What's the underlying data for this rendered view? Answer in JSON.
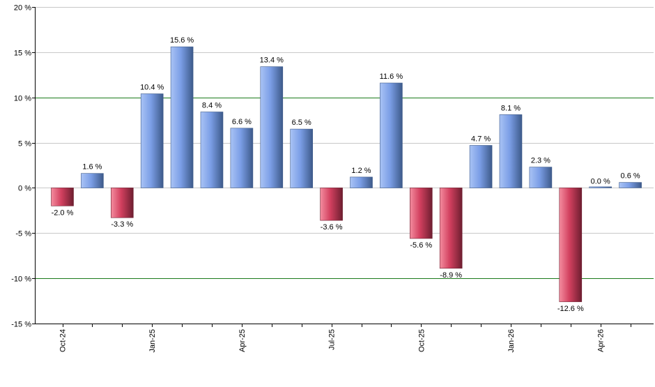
{
  "chart_data": {
    "type": "bar",
    "title": "",
    "xlabel": "",
    "ylabel": "",
    "ylim": [
      -15,
      20
    ],
    "y_ticks": [
      20,
      15,
      10,
      5,
      0,
      -5,
      -10,
      -15
    ],
    "y_tick_labels": [
      "20 %",
      "15 %",
      "10 %",
      "5 %",
      "0 %",
      "-5 %",
      "-10 %",
      "-15 %"
    ],
    "highlight_lines": [
      10,
      -10
    ],
    "grid": true,
    "legend": "none",
    "categories": [
      "Oct-24",
      "Nov-24",
      "Dec-24",
      "Jan-25",
      "Feb-25",
      "Mar-25",
      "Apr-25",
      "May-25",
      "Jun-25",
      "Jul-25",
      "Aug-25",
      "Sep-25",
      "Oct-25",
      "Nov-25",
      "Dec-25",
      "Jan-26",
      "Feb-26",
      "Mar-26",
      "Apr-26",
      "May-26"
    ],
    "x_tick_labels": [
      {
        "index": 0,
        "label": "Oct-24"
      },
      {
        "index": 3,
        "label": "Jan-25"
      },
      {
        "index": 6,
        "label": "Apr-25"
      },
      {
        "index": 9,
        "label": "Jul-25"
      },
      {
        "index": 12,
        "label": "Oct-25"
      },
      {
        "index": 15,
        "label": "Jan-26"
      },
      {
        "index": 18,
        "label": "Apr-26"
      }
    ],
    "values": [
      -2.0,
      1.6,
      -3.3,
      10.4,
      15.6,
      8.4,
      6.6,
      13.4,
      6.5,
      -3.6,
      1.2,
      11.6,
      -5.6,
      -8.9,
      4.7,
      8.1,
      2.3,
      -12.6,
      0.0,
      0.6
    ],
    "data_labels": [
      "-2.0 %",
      "1.6 %",
      "-3.3 %",
      "10.4 %",
      "15.6 %",
      "8.4 %",
      "6.6 %",
      "13.4 %",
      "6.5 %",
      "-3.6 %",
      "1.2 %",
      "11.6 %",
      "-5.6 %",
      "-8.9 %",
      "4.7 %",
      "8.1 %",
      "2.3 %",
      "-12.6 %",
      "0.0 %",
      "0.6 %"
    ],
    "colors": {
      "positive_light": "#a9c3f5",
      "positive_mid": "#7b9ee6",
      "positive_dark": "#3d5a8a",
      "negative_light": "#f48d9f",
      "negative_mid": "#d2405f",
      "negative_dark": "#6e1e30",
      "grid": "#c8c8c8",
      "highlight": "#1a7a1a",
      "axis": "#000000"
    }
  }
}
